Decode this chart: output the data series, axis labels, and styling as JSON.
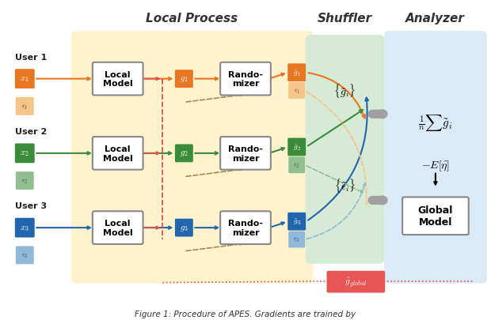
{
  "title": "",
  "figsize": [
    6.2,
    4.06
  ],
  "dpi": 100,
  "bg_color": "#ffffff",
  "local_process_bg": "#FFF3CD",
  "shuffler_bg": "#D6EAD6",
  "analyzer_bg": "#DBEAF7",
  "local_process_label": "Local Process",
  "shuffler_label": "Shuffler",
  "analyzer_label": "Analyzer",
  "user_colors": [
    "#E87722",
    "#2E8B57",
    "#2166AC"
  ],
  "user_labels": [
    "User 1",
    "User 2",
    "User 3"
  ],
  "caption": "Figure 1: Procedure of APES. Gradients are trained by"
}
